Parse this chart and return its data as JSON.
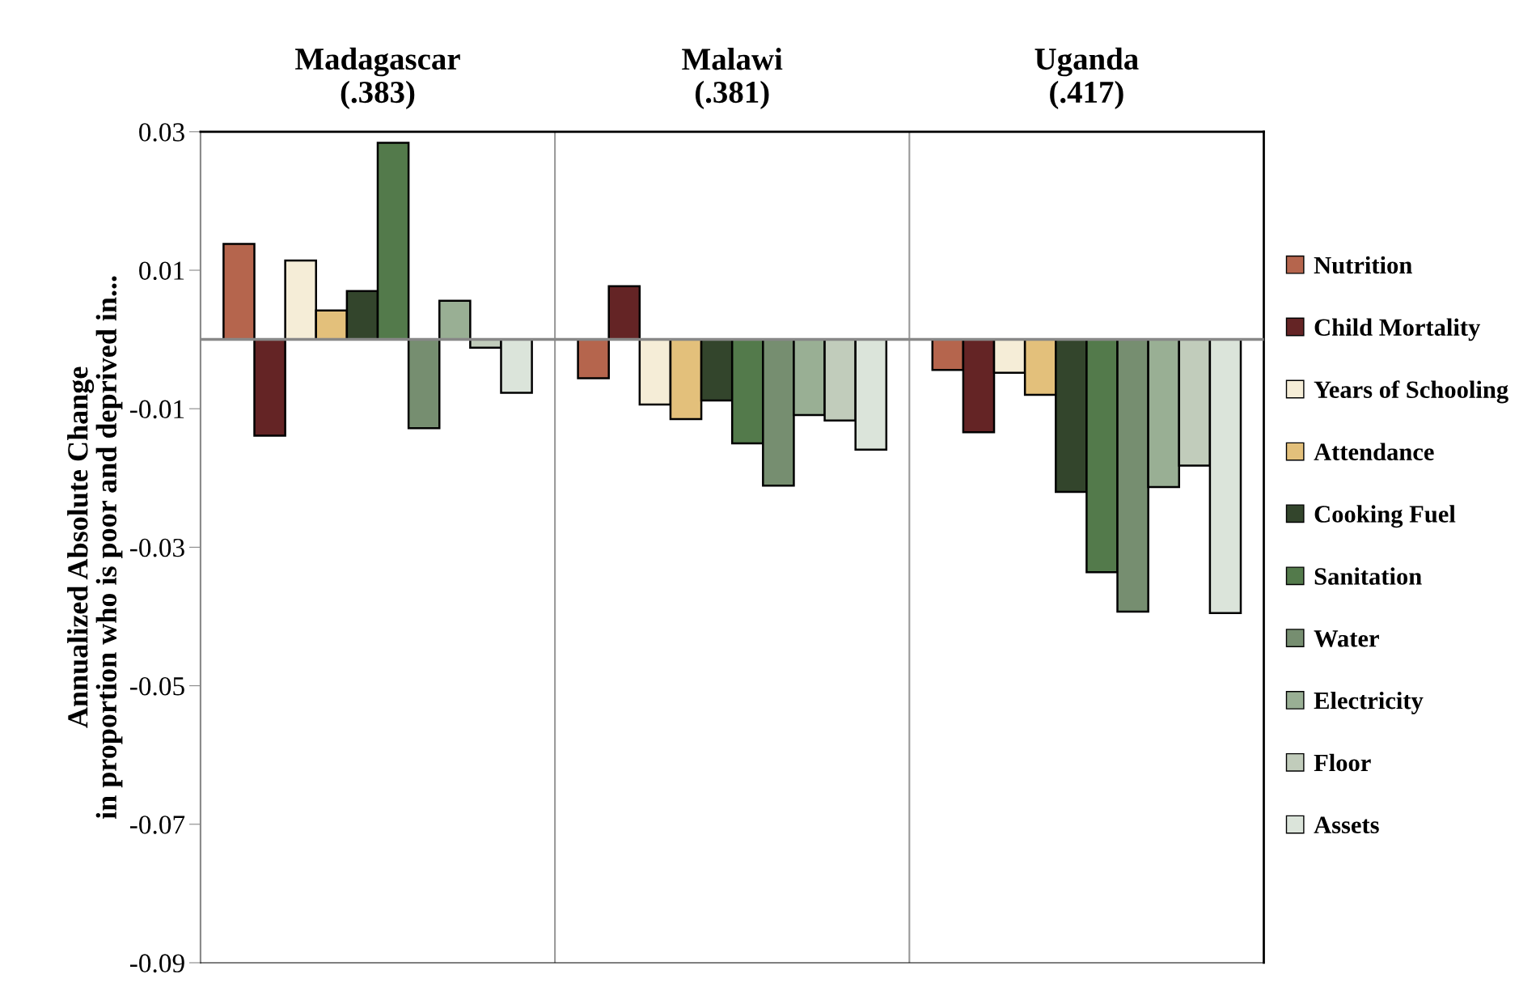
{
  "chart_data": {
    "type": "bar",
    "ylabel": "Annualized Absolute Change\nin proportion who is poor and deprived in...",
    "categories": [
      "Madagascar\n(.383)",
      "Malawi\n(.381)",
      "Uganda\n(.417)"
    ],
    "ylim": [
      -0.09,
      0.03
    ],
    "yticks": [
      0.03,
      0.01,
      -0.01,
      -0.03,
      -0.05,
      -0.07,
      -0.09
    ],
    "grid": "x",
    "legend": "right",
    "series": [
      {
        "name": "Nutrition",
        "color": "#b5654d",
        "values": [
          0.0138,
          -0.0056,
          -0.0044
        ]
      },
      {
        "name": "Child Mortality",
        "color": "#642425",
        "values": [
          -0.0139,
          0.0077,
          -0.0134
        ]
      },
      {
        "name": "Years of Schooling",
        "color": "#f5edd7",
        "values": [
          0.0114,
          -0.0094,
          -0.0048
        ]
      },
      {
        "name": "Attendance",
        "color": "#e3c07b",
        "values": [
          0.0042,
          -0.0115,
          -0.008
        ]
      },
      {
        "name": "Cooking Fuel",
        "color": "#33452c",
        "values": [
          0.007,
          -0.0088,
          -0.022
        ]
      },
      {
        "name": "Sanitation",
        "color": "#537a4b",
        "values": [
          0.0284,
          -0.015,
          -0.0336
        ]
      },
      {
        "name": "Water",
        "color": "#768e70",
        "values": [
          -0.0128,
          -0.0211,
          -0.0393
        ]
      },
      {
        "name": "Electricity",
        "color": "#99af94",
        "values": [
          0.0056,
          -0.0109,
          -0.0213
        ]
      },
      {
        "name": "Floor",
        "color": "#c1ccbb",
        "values": [
          -0.0012,
          -0.0117,
          -0.0182
        ]
      },
      {
        "name": "Assets",
        "color": "#dbe4da",
        "values": [
          -0.0077,
          -0.0159,
          -0.0395
        ]
      }
    ]
  }
}
